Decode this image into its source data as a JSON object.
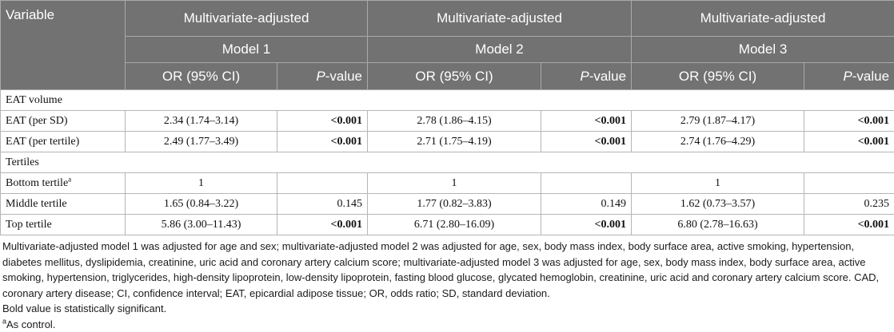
{
  "header": {
    "variable": "Variable",
    "groups": [
      {
        "top": "Multivariate-adjusted",
        "model": "Model 1"
      },
      {
        "top": "Multivariate-adjusted",
        "model": "Model 2"
      },
      {
        "top": "Multivariate-adjusted",
        "model": "Model 3"
      }
    ],
    "or_label": "OR (95% CI)",
    "p_italic": "P",
    "p_suffix": "-value"
  },
  "sections": {
    "eat_volume": "EAT volume",
    "tertiles": "Tertiles"
  },
  "rows": {
    "per_sd": {
      "label": "EAT (per SD)",
      "m1_or": "2.34 (1.74–3.14)",
      "m1_p": "<0.001",
      "m2_or": "2.78 (1.86–4.15)",
      "m2_p": "<0.001",
      "m3_or": "2.79 (1.87–4.17)",
      "m3_p": "<0.001"
    },
    "per_tertile": {
      "label": "EAT (per tertile)",
      "m1_or": "2.49 (1.77–3.49)",
      "m1_p": "<0.001",
      "m2_or": "2.71 (1.75–4.19)",
      "m2_p": "<0.001",
      "m3_or": "2.74 (1.76–4.29)",
      "m3_p": "<0.001"
    },
    "bottom": {
      "label": "Bottom tertile",
      "sup": "a",
      "m1_or": "1",
      "m1_p": "",
      "m2_or": "1",
      "m2_p": "",
      "m3_or": "1",
      "m3_p": ""
    },
    "middle": {
      "label": "Middle tertile",
      "m1_or": "1.65 (0.84–3.22)",
      "m1_p": "0.145",
      "m2_or": "1.77 (0.82–3.83)",
      "m2_p": "0.149",
      "m3_or": "1.62 (0.73–3.57)",
      "m3_p": "0.235"
    },
    "top": {
      "label": "Top tertile",
      "m1_or": "5.86 (3.00–11.43)",
      "m1_p": "<0.001",
      "m2_or": "6.71 (2.80–16.09)",
      "m2_p": "<0.001",
      "m3_or": "6.80 (2.78–16.63)",
      "m3_p": "<0.001"
    }
  },
  "footnotes": {
    "models": "Multivariate-adjusted model 1 was adjusted for age and sex; multivariate-adjusted model 2 was adjusted for age, sex, body mass index, body surface area, active smoking, hypertension, diabetes mellitus, dyslipidemia, creatinine, uric acid and coronary artery calcium score; multivariate-adjusted model 3 was adjusted for age, sex, body mass index, body surface area, active smoking, hypertension, triglycerides, high-density lipoprotein, low-density lipoprotein, fasting blood glucose, glycated hemoglobin, creatinine, uric acid and coronary artery calcium score. CAD, coronary artery disease; CI, confidence interval; EAT, epicardial adipose tissue; OR, odds ratio; SD, standard deviation.",
    "bold": "Bold value is statistically significant.",
    "a_marker": "a",
    "a_text": "As control."
  },
  "colors": {
    "header_bg": "#727272",
    "header_text": "#ffffff",
    "border": "#b5b5b5"
  }
}
